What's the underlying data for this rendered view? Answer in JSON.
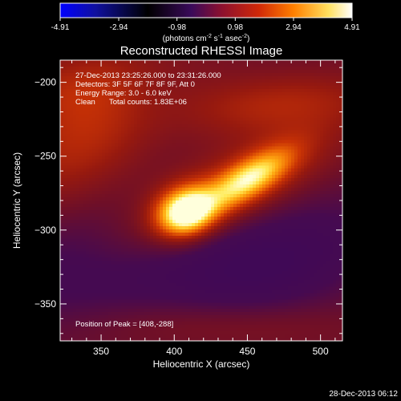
{
  "colorbar": {
    "tick_labels": [
      "-4.91",
      "-2.94",
      "-0.98",
      "0.98",
      "2.94",
      "4.91"
    ],
    "range": [
      -4.91,
      4.91
    ],
    "units_parts": [
      "(photons cm",
      "-2",
      " s",
      "-1",
      " asec",
      "-2",
      ")"
    ],
    "colors": [
      "#0000ff",
      "#000000",
      "#3a0a5a",
      "#7a1040",
      "#c03010",
      "#ff8000",
      "#ffff80",
      "#ffffff"
    ]
  },
  "chart_data": {
    "type": "heatmap",
    "title": "Reconstructed RHESSI Image",
    "xlabel": "Heliocentric X (arcsec)",
    "ylabel": "Heliocentric Y (arcsec)",
    "xlim": [
      322,
      515
    ],
    "ylim": [
      -375,
      -185
    ],
    "xticks": [
      350,
      400,
      450,
      500
    ],
    "yticks": [
      -200,
      -250,
      -300,
      -350
    ],
    "peak": {
      "x": 408,
      "y": -288
    },
    "annotations": {
      "time_range": "27-Dec-2013 23:25:26.000 to 23:31:26.000",
      "detectors": "Detectors: 3F 5F 6F 7F 8F 9F, Att 0",
      "energy": "Energy Range: 3.0 - 6.0 keV",
      "clean": "Clean",
      "counts": "Total counts: 1.83E+06",
      "peak_position": "Position of Peak = [408,-288]"
    }
  },
  "footer": {
    "date": "28-Dec-2013 06:12"
  }
}
